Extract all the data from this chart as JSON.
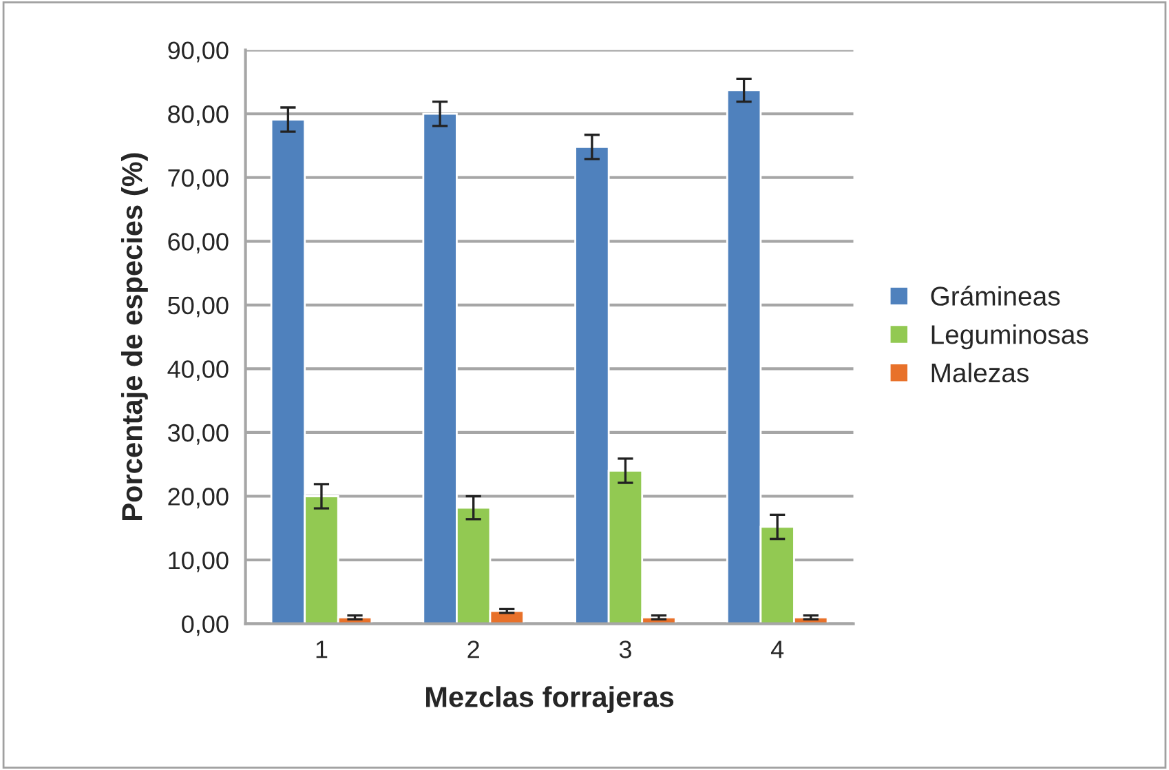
{
  "chart_data": {
    "type": "bar",
    "xlabel": "Mezclas forrajeras",
    "ylabel": "Porcentaje de especies (%)",
    "categories": [
      "1",
      "2",
      "3",
      "4"
    ],
    "series": [
      {
        "name": "Grámineas",
        "color": "#4f81bd",
        "values": [
          79.1,
          80.0,
          74.8,
          83.7
        ],
        "errors": [
          1.9,
          1.9,
          1.9,
          1.8
        ]
      },
      {
        "name": "Leguminosas",
        "color": "#92c952",
        "values": [
          20.0,
          18.2,
          24.0,
          15.2
        ],
        "errors": [
          1.9,
          1.8,
          1.9,
          1.9
        ]
      },
      {
        "name": "Malezas",
        "color": "#e8712a",
        "values": [
          1.0,
          2.0,
          1.0,
          1.0
        ],
        "errors": [
          0.3,
          0.3,
          0.3,
          0.3
        ]
      }
    ],
    "ylim": [
      0,
      90
    ],
    "yticks": [
      {
        "value": 0,
        "label": "0,00"
      },
      {
        "value": 10,
        "label": "10,00"
      },
      {
        "value": 20,
        "label": "20,00"
      },
      {
        "value": 30,
        "label": "30,00"
      },
      {
        "value": 40,
        "label": "40,00"
      },
      {
        "value": 50,
        "label": "50,00"
      },
      {
        "value": 60,
        "label": "60,00"
      },
      {
        "value": 70,
        "label": "70,00"
      },
      {
        "value": 80,
        "label": "80,00"
      },
      {
        "value": 90,
        "label": "90,00"
      }
    ],
    "grid": "y",
    "legend": "right"
  }
}
